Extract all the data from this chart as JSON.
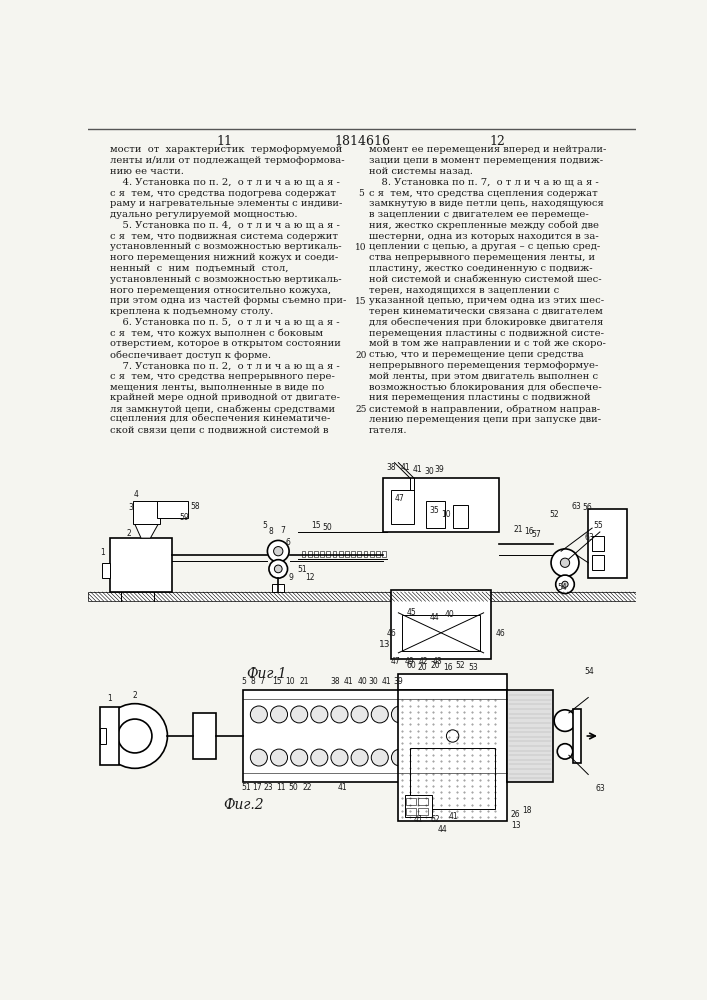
{
  "page_left": "11",
  "page_center": "1814616",
  "page_right": "12",
  "background_color": "#f5f5f0",
  "text_color": "#1a1a1a",
  "left_column_text": [
    "мости  от  характеристик  термоформуемой",
    "ленты и/или от подлежащей термоформова-",
    "нию ее части.",
    "    4. Установка по п. 2,  о т л и ч а ю щ а я -",
    "с я  тем, что средства подогрева содержат",
    "раму и нагревательные элементы с индиви-",
    "дуально регулируемой мощностью.",
    "    5. Установка по п. 4,  о т л и ч а ю щ а я -",
    "с я  тем, что подвижная система содержит",
    "установленный с возможностью вертикаль-",
    "ного перемещения нижний кожух и соеди-",
    "ненный  с  ним  подъемный  стол,",
    "установленный с возможностью вертикаль-",
    "ного перемещения относительно кожуха,",
    "при этом одна из частей формы съемно при-",
    "креплена к подъемному столу.",
    "    6. Установка по п. 5,  о т л и ч а ю щ а я -",
    "с я  тем, что кожух выполнен с боковым",
    "отверстием, которое в открытом состоянии",
    "обеспечивает доступ к форме.",
    "    7. Установка по п. 2,  о т л и ч а ю щ а я -",
    "с я  тем, что средства непрерывного пере-",
    "мещения ленты, выполненные в виде по",
    "крайней мере одной приводной от двигате-",
    "ля замкнутой цепи, снабжены средствами",
    "сцепления для обеспечения кинематиче-",
    "ской связи цепи с подвижной системой в"
  ],
  "right_column_text": [
    "момент ее перемещения вперед и нейтрали-",
    "зации цепи в момент перемещения подвиж-",
    "ной системы назад.",
    "    8. Установка по п. 7,  о т л и ч а ю щ а я -",
    "с я  тем, что средства сцепления содержат",
    "замкнутую в виде петли цепь, находящуюся",
    "в зацеплении с двигателем ее перемеще-",
    "ния, жестко скрепленные между собой две",
    "шестерни, одна из которых находится в за-",
    "цеплении с цепью, а другая – с цепью сред-",
    "ства непрерывного перемещения ленты, и",
    "пластину, жестко соединенную с подвиж-",
    "ной системой и снабженную системой шес-",
    "терен, находящихся в зацеплении с",
    "указанной цепью, причем одна из этих шес-",
    "терен кинематически связана с двигателем",
    "для обеспечения при блокировке двигателя",
    "перемещения пластины с подвижной систе-",
    "мой в том же направлении и с той же скоро-",
    "стью, что и перемещение цепи средства",
    "непрерывного перемещения термоформуе-",
    "мой ленты, при этом двигатель выполнен с",
    "возможностью блокирования для обеспече-",
    "ния перемещения пластины с подвижной",
    "системой в направлении, обратном направ-",
    "лению перемещения цепи при запуске дви-",
    "гателя."
  ],
  "fig1_label": "Фuг.1",
  "fig2_label": "Фuг.2"
}
